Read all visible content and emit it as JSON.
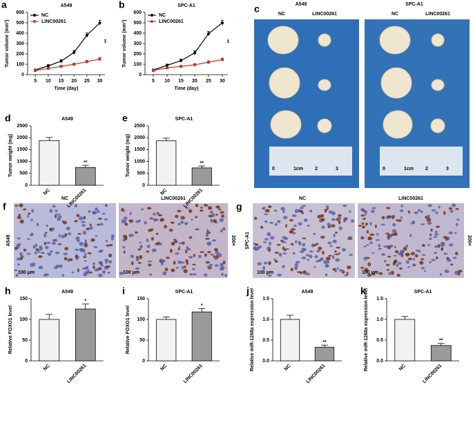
{
  "chart_data": [
    {
      "type": "line",
      "panel": "a",
      "title": "A549",
      "x_label": "Time (day)",
      "y_label": "Tumor volume (mm³)",
      "x": [
        5,
        10,
        15,
        20,
        25,
        30
      ],
      "xlim": [
        2,
        32
      ],
      "xticks": [
        5,
        10,
        15,
        20,
        25,
        30
      ],
      "ylim": [
        0,
        600
      ],
      "yticks": [
        0,
        100,
        200,
        300,
        400,
        500,
        600
      ],
      "annotation": "**",
      "series": [
        {
          "name": "NC",
          "color": "#000000",
          "values": [
            45,
            85,
            130,
            215,
            380,
            500
          ],
          "errors": [
            8,
            12,
            15,
            20,
            22,
            25
          ]
        },
        {
          "name": "LINC00261",
          "color": "#c0392b",
          "values": [
            40,
            60,
            80,
            100,
            125,
            150
          ],
          "errors": [
            6,
            8,
            10,
            12,
            14,
            16
          ]
        }
      ]
    },
    {
      "type": "line",
      "panel": "b",
      "title": "SPC-A1",
      "x_label": "Time (day)",
      "y_label": "Tumor volume (mm³)",
      "x": [
        5,
        10,
        15,
        20,
        25,
        30
      ],
      "xlim": [
        2,
        32
      ],
      "xticks": [
        5,
        10,
        15,
        20,
        25,
        30
      ],
      "ylim": [
        0,
        600
      ],
      "yticks": [
        0,
        100,
        200,
        300,
        400,
        500,
        600
      ],
      "annotation": "**",
      "series": [
        {
          "name": "NC",
          "color": "#000000",
          "values": [
            45,
            90,
            135,
            210,
            395,
            500
          ],
          "errors": [
            8,
            12,
            15,
            20,
            22,
            25
          ]
        },
        {
          "name": "LINC00261",
          "color": "#c0392b",
          "values": [
            40,
            65,
            80,
            95,
            120,
            145
          ],
          "errors": [
            6,
            8,
            10,
            12,
            14,
            15
          ]
        }
      ]
    },
    {
      "type": "bar",
      "panel": "d",
      "title": "A549",
      "y_label": "Tumor weight (mg)",
      "categories": [
        "NC",
        "LINC00261"
      ],
      "values": [
        1880,
        750
      ],
      "errors": [
        130,
        90
      ],
      "colors": [
        "#f2f2f2",
        "#9a9a9a"
      ],
      "ylim": [
        0,
        2500
      ],
      "yticks": [
        0,
        500,
        1000,
        1500,
        2000,
        2500
      ],
      "annotation": "**"
    },
    {
      "type": "bar",
      "panel": "e",
      "title": "SPC-A1",
      "y_label": "Tumor weight (mg)",
      "categories": [
        "NC",
        "LINC00261"
      ],
      "values": [
        1870,
        730
      ],
      "errors": [
        110,
        80
      ],
      "colors": [
        "#f2f2f2",
        "#9a9a9a"
      ],
      "ylim": [
        0,
        2500
      ],
      "yticks": [
        0,
        500,
        1000,
        1500,
        2000,
        2500
      ],
      "annotation": "**"
    },
    {
      "type": "bar",
      "panel": "h",
      "title": "A549",
      "y_label": "Relative FOXO1 level",
      "categories": [
        "NC",
        "LINC00261"
      ],
      "values": [
        100,
        125
      ],
      "errors": [
        12,
        12
      ],
      "colors": [
        "#f2f2f2",
        "#9a9a9a"
      ],
      "ylim": [
        0,
        150
      ],
      "yticks": [
        0,
        50,
        100,
        150
      ],
      "annotation": "*"
    },
    {
      "type": "bar",
      "panel": "i",
      "title": "SPC-A1",
      "y_label": "Relative FOXO1 level",
      "categories": [
        "NC",
        "LINC00261"
      ],
      "values": [
        100,
        118
      ],
      "errors": [
        6,
        8
      ],
      "colors": [
        "#f2f2f2",
        "#9a9a9a"
      ],
      "ylim": [
        0,
        150
      ],
      "yticks": [
        0,
        50,
        100,
        150
      ],
      "annotation": "*"
    },
    {
      "type": "bar",
      "panel": "j",
      "title": "A549",
      "y_label": "Relative miR-1268a expression level",
      "categories": [
        "NC",
        "LINC00261"
      ],
      "values": [
        1.0,
        0.33
      ],
      "errors": [
        0.1,
        0.05
      ],
      "colors": [
        "#f2f2f2",
        "#9a9a9a"
      ],
      "ylim": [
        0,
        1.5
      ],
      "yticks": [
        {
          "value": 0,
          "label": "0.0"
        },
        {
          "value": 0.5,
          "label": "0.5"
        },
        {
          "value": 1,
          "label": "1.0"
        },
        {
          "value": 1.5,
          "label": "1.5"
        }
      ],
      "annotation": "**"
    },
    {
      "type": "bar",
      "panel": "k",
      "title": "SPC-A1",
      "y_label": "Relative miR-1268a expression level",
      "categories": [
        "NC",
        "LINC00261"
      ],
      "values": [
        1.0,
        0.37
      ],
      "errors": [
        0.07,
        0.05
      ],
      "colors": [
        "#f2f2f2",
        "#9a9a9a"
      ],
      "ylim": [
        0,
        1.5
      ],
      "yticks": [
        {
          "value": 0,
          "label": "0.0"
        },
        {
          "value": 0.5,
          "label": "0.5"
        },
        {
          "value": 1,
          "label": "1.0"
        },
        {
          "value": 1.5,
          "label": "1.5"
        }
      ],
      "annotation": "**"
    }
  ],
  "photos": {
    "c": {
      "panel": "c",
      "columns": [
        "A549",
        "SPC-A1"
      ],
      "groups": [
        "NC",
        "LINC00261"
      ],
      "ruler": [
        "0",
        "1cm",
        "2",
        "3"
      ]
    },
    "f": {
      "panel": "f",
      "row": "A549",
      "columns": [
        "NC",
        "LINC00261"
      ],
      "magnification": "200×",
      "scale": "100 μm"
    },
    "g": {
      "panel": "g",
      "row": "SPC-A1",
      "columns": [
        "NC",
        "LINC00261"
      ],
      "magnification": "200×",
      "scale": "100 μm"
    }
  }
}
